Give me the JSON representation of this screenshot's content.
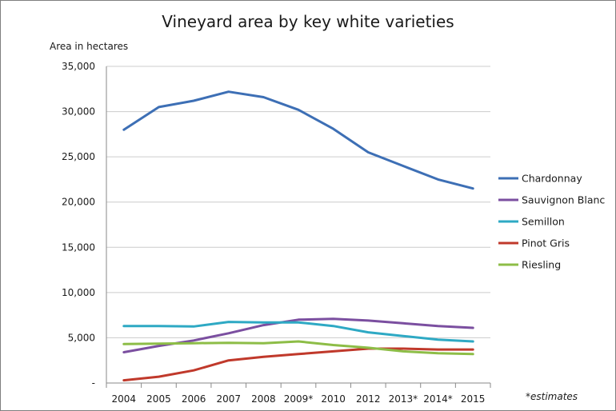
{
  "chart_data": {
    "type": "line",
    "title": "Vineyard area by key white varieties",
    "ylabel": "Area in hectares",
    "xlabel": "",
    "note": "*estimates",
    "categories": [
      "2004",
      "2005",
      "2006",
      "2007",
      "2008",
      "2009*",
      "2010",
      "2012",
      "2013*",
      "2014*",
      "2015"
    ],
    "ylim": [
      0,
      35000
    ],
    "yticks": [
      0,
      5000,
      10000,
      15000,
      20000,
      25000,
      30000,
      35000
    ],
    "ytick_labels": [
      "-",
      "5,000",
      "10,000",
      "15,000",
      "20,000",
      "25,000",
      "30,000",
      "35,000"
    ],
    "grid": "horizontal",
    "legend_position": "right",
    "series": [
      {
        "name": "Chardonnay",
        "color": "#3d6fb5",
        "values": [
          28000,
          30500,
          31200,
          32200,
          31600,
          30200,
          28100,
          25500,
          24000,
          22500,
          21500
        ]
      },
      {
        "name": "Sauvignon Blanc",
        "color": "#7b4fa0",
        "values": [
          3400,
          4100,
          4700,
          5500,
          6400,
          7000,
          7100,
          6900,
          6600,
          6300,
          6100
        ]
      },
      {
        "name": "Semillon",
        "color": "#2ea9c4",
        "values": [
          6300,
          6300,
          6250,
          6750,
          6700,
          6700,
          6300,
          5600,
          5200,
          4800,
          4600
        ]
      },
      {
        "name": "Pinot Gris",
        "color": "#c0392b",
        "values": [
          300,
          700,
          1400,
          2500,
          2900,
          3200,
          3500,
          3800,
          3800,
          3700,
          3700
        ]
      },
      {
        "name": "Riesling",
        "color": "#8dbd47",
        "values": [
          4300,
          4350,
          4400,
          4450,
          4400,
          4600,
          4200,
          3900,
          3500,
          3300,
          3200
        ]
      }
    ]
  }
}
